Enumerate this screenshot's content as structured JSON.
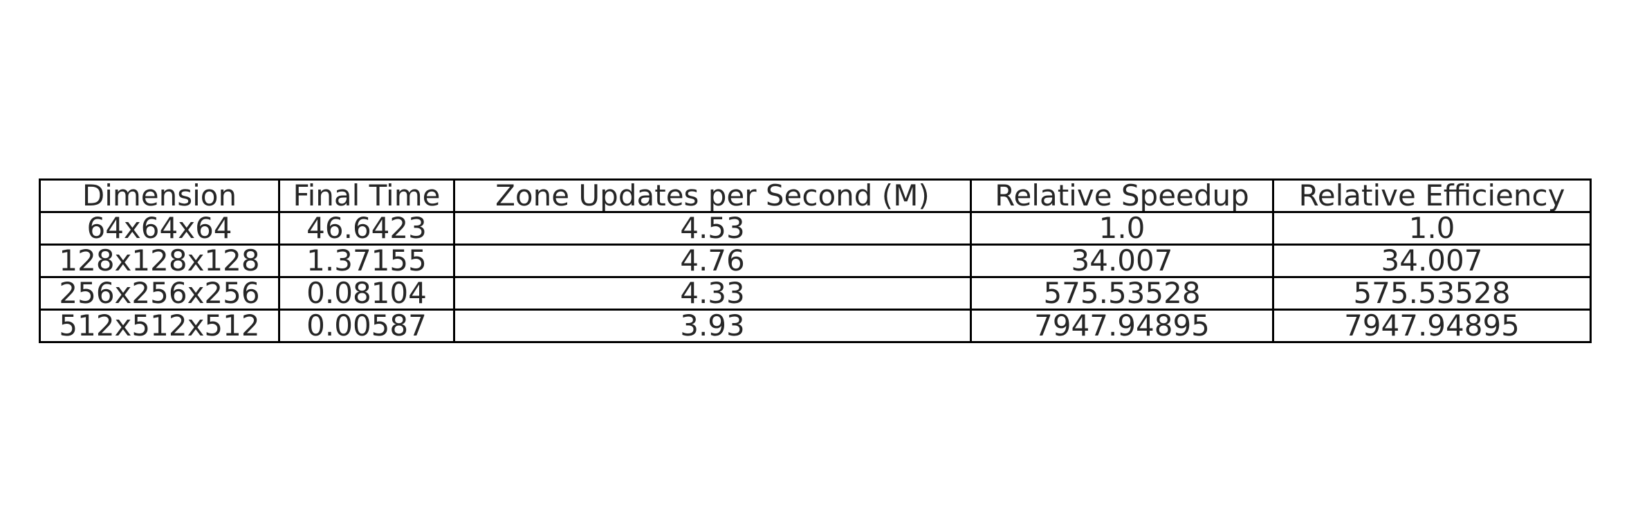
{
  "chart_data": {
    "type": "table",
    "columns": [
      "Dimension",
      "Final Time",
      "Zone Updates per Second (M)",
      "Relative Speedup",
      "Relative Efficiency"
    ],
    "rows": [
      [
        "64x64x64",
        "46.6423",
        "4.53",
        "1.0",
        "1.0"
      ],
      [
        "128x128x128",
        "1.37155",
        "4.76",
        "34.007",
        "34.007"
      ],
      [
        "256x256x256",
        "0.08104",
        "4.33",
        "575.53528",
        "575.53528"
      ],
      [
        "512x512x512",
        "0.00587",
        "3.93",
        "7947.94895",
        "7947.94895"
      ]
    ]
  }
}
